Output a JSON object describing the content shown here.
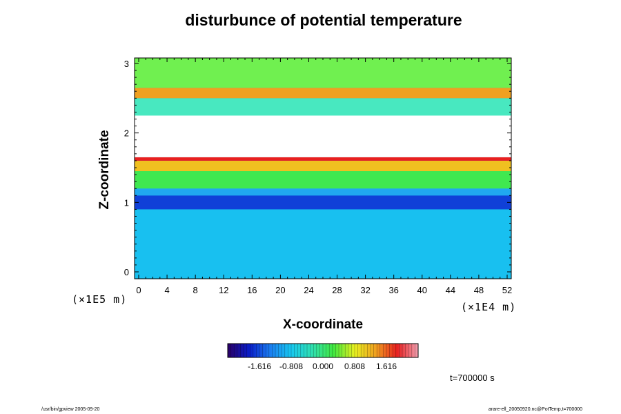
{
  "chart_data": {
    "type": "heatmap",
    "title": "disturbunce of potential temperature",
    "xlabel": "X-coordinate",
    "ylabel": "Z-coordinate",
    "x_unit": "(×1E4 m)",
    "y_unit": "(×1E5 m)",
    "xlim": [
      0,
      52
    ],
    "ylim": [
      0,
      3
    ],
    "x_ticks": [
      "0",
      "4",
      "8",
      "12",
      "16",
      "20",
      "24",
      "28",
      "32",
      "36",
      "40",
      "44",
      "48",
      "52"
    ],
    "y_ticks": [
      "0",
      "1",
      "2",
      "3"
    ],
    "colorbar": {
      "range": [
        -2.424,
        2.424
      ],
      "tick_values": [
        -1.616,
        -0.808,
        0.0,
        0.808,
        1.616
      ],
      "tick_labels": [
        "-1.616",
        "-0.808",
        "0.000",
        "0.808",
        "1.616"
      ],
      "colormap": [
        "#2a0066",
        "#0a1cc8",
        "#1a7cf0",
        "#18c8f0",
        "#30e0b0",
        "#40e840",
        "#e8f020",
        "#f0a020",
        "#e82020",
        "#f0a0b0"
      ]
    },
    "bands": [
      {
        "z": [
          0.0,
          0.9
        ],
        "value": -1.0,
        "color": "#18c0f0"
      },
      {
        "z": [
          0.9,
          1.1
        ],
        "value": -1.6,
        "color": "#1040d8"
      },
      {
        "z": [
          1.1,
          1.2
        ],
        "value": -1.0,
        "color": "#20a8f0"
      },
      {
        "z": [
          1.2,
          1.45
        ],
        "value": 0.2,
        "color": "#40e850"
      },
      {
        "z": [
          1.45,
          1.6
        ],
        "value": 1.2,
        "color": "#f0c020"
      },
      {
        "z": [
          1.6,
          1.65
        ],
        "value": 1.9,
        "color": "#e82020"
      },
      {
        "z": [
          1.65,
          2.25
        ],
        "value": null,
        "color": "#ffffff"
      },
      {
        "z": [
          2.25,
          2.5
        ],
        "value": 0.0,
        "color": "#48e8c0"
      },
      {
        "z": [
          2.5,
          2.65
        ],
        "value": 1.2,
        "color": "#f0a020"
      },
      {
        "z": [
          2.65,
          3.0
        ],
        "value": 0.4,
        "color": "#70f050"
      }
    ]
  },
  "time_label": "t=700000 s",
  "footer_left": "/usr/bin/gpview 2005-09-20",
  "footer_right": "arare-ell_20050920.nc@PotTemp,t=700000"
}
